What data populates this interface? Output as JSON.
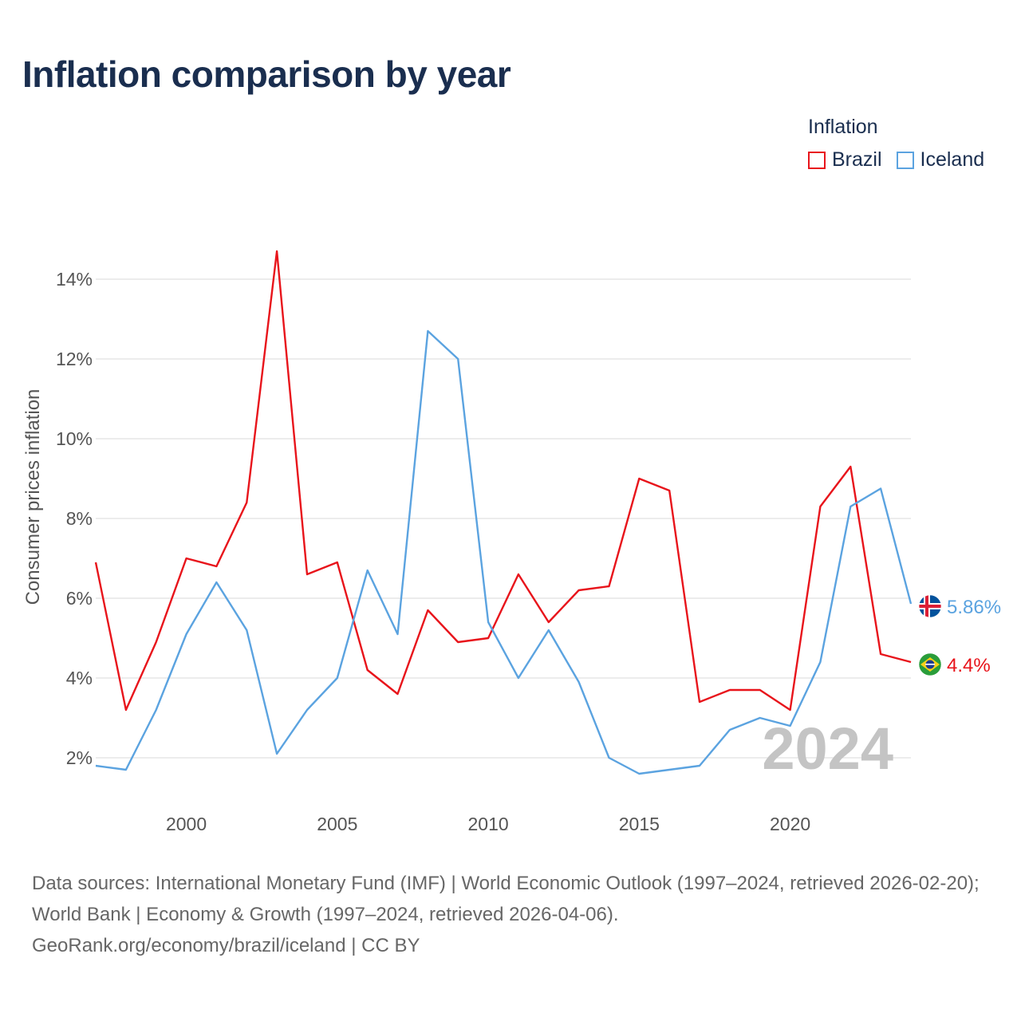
{
  "title": "Inflation comparison by year",
  "legend": {
    "title": "Inflation",
    "items": [
      {
        "name": "Brazil",
        "color": "#e8141b"
      },
      {
        "name": "Iceland",
        "color": "#5ba3e0"
      }
    ]
  },
  "footer": {
    "sources": "Data sources: International Monetary Fund (IMF) | World Economic Outlook (1997–2024, retrieved 2026-02-20); World Bank | Economy & Growth (1997–2024, retrieved 2026-04-06).",
    "credit": "GeoRank.org/economy/brazil/iceland | CC BY"
  },
  "chart_data": {
    "type": "line",
    "title": "Inflation comparison by year",
    "ylabel": "Consumer prices inflation",
    "xlabel": "",
    "year_label": "2024",
    "x": [
      1997,
      1998,
      1999,
      2000,
      2001,
      2002,
      2003,
      2004,
      2005,
      2006,
      2007,
      2008,
      2009,
      2010,
      2011,
      2012,
      2013,
      2014,
      2015,
      2016,
      2017,
      2018,
      2019,
      2020,
      2021,
      2022,
      2023,
      2024
    ],
    "xlim": [
      1997,
      2024
    ],
    "ylim": [
      0.8,
      15.8
    ],
    "x_ticks": [
      2000,
      2005,
      2010,
      2015,
      2020
    ],
    "y_ticks": [
      2,
      4,
      6,
      8,
      10,
      12,
      14
    ],
    "y_tick_labels": [
      "2%",
      "4%",
      "6%",
      "8%",
      "10%",
      "12%",
      "14%"
    ],
    "series": [
      {
        "name": "Brazil",
        "color": "#e8141b",
        "end_label": "4.4%",
        "flag": "brazil-flag",
        "values": [
          6.9,
          3.2,
          4.9,
          7.0,
          6.8,
          8.4,
          14.7,
          6.6,
          6.9,
          4.2,
          3.6,
          5.7,
          4.9,
          5.0,
          6.6,
          5.4,
          6.2,
          6.3,
          9.0,
          8.7,
          3.4,
          3.7,
          3.7,
          3.2,
          8.3,
          9.3,
          4.6,
          4.4
        ]
      },
      {
        "name": "Iceland",
        "color": "#5ba3e0",
        "end_label": "5.86%",
        "flag": "iceland-flag",
        "values": [
          1.8,
          1.7,
          3.2,
          5.1,
          6.4,
          5.2,
          2.1,
          3.2,
          4.0,
          6.7,
          5.1,
          12.7,
          12.0,
          5.4,
          4.0,
          5.2,
          3.9,
          2.0,
          1.6,
          1.7,
          1.8,
          2.7,
          3.0,
          2.8,
          4.4,
          8.3,
          8.75,
          5.86
        ]
      }
    ]
  }
}
